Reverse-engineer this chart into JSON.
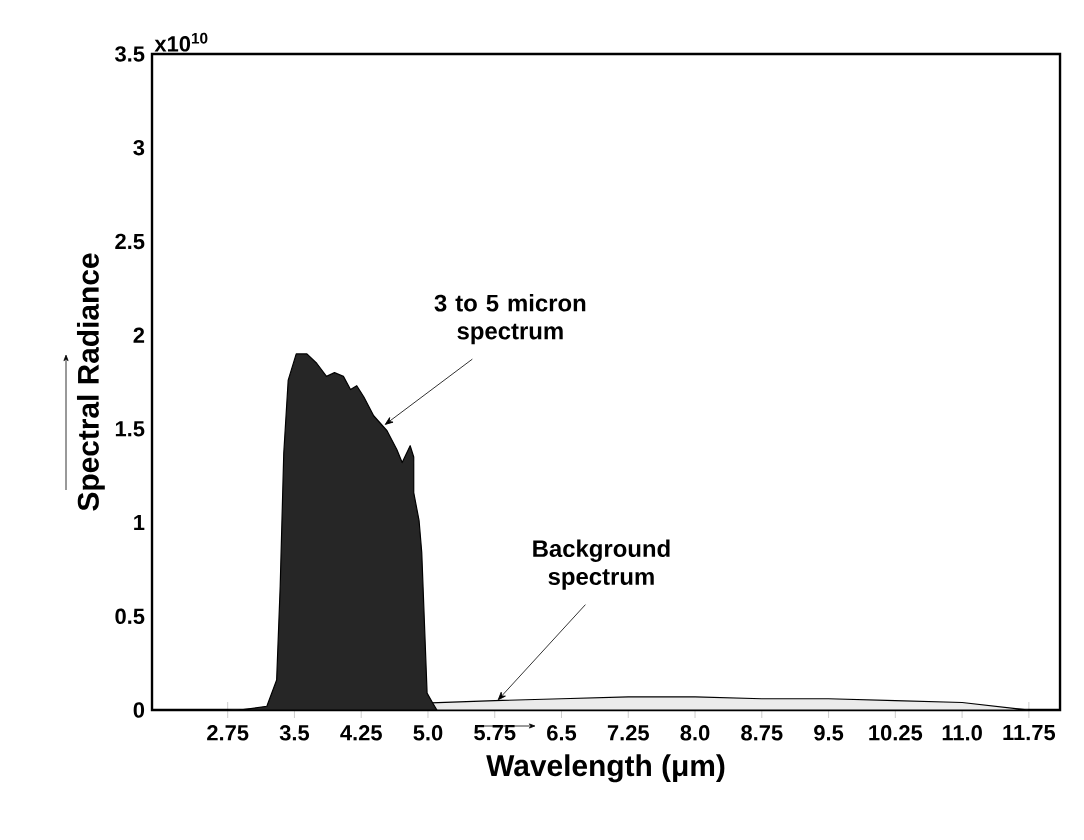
{
  "chart_data": {
    "type": "area",
    "xlabel": "Wavelength (μm)",
    "ylabel": "Spectral Radiance",
    "xlim": [
      1.9,
      12.1
    ],
    "ylim": [
      0,
      3.5
    ],
    "xticks": [
      2.75,
      3.5,
      4.25,
      {
        "value": 5.0,
        "label": "5.0"
      },
      5.75,
      6.5,
      7.25,
      {
        "value": 8.0,
        "label": "8.0"
      },
      8.75,
      9.5,
      10.25,
      {
        "value": 11.0,
        "label": "11.0"
      },
      11.75
    ],
    "yticks": [
      0,
      0.5,
      1,
      1.5,
      2,
      2.5,
      3,
      3.5
    ],
    "series": [
      {
        "color": "#ebebeb",
        "x": [
          2.75,
          3.5,
          4.25,
          5.0,
          5.75,
          6.5,
          7.25,
          8.0,
          8.75,
          9.5,
          10.25,
          11.0,
          11.75
        ],
        "values": [
          0,
          null,
          null,
          null,
          0.05,
          0.06,
          0.07,
          0.07,
          0.06,
          0.06,
          0.05,
          0.04,
          0
        ]
      },
      {
        "color": "#262626",
        "x": [
          2.89,
          3.19,
          3.3,
          3.34,
          3.38,
          3.43,
          3.52,
          3.64,
          3.75,
          3.86,
          3.95,
          4.05,
          4.13,
          4.2,
          4.28,
          4.39,
          4.54,
          4.65,
          4.71,
          4.8,
          4.84,
          4.84,
          4.9,
          4.93,
          4.99,
          5.05,
          5.1
        ],
        "values": [
          0,
          0.02,
          0.16,
          0.66,
          1.37,
          1.76,
          1.9,
          1.9,
          1.85,
          1.78,
          1.8,
          1.78,
          1.71,
          1.73,
          1.67,
          1.57,
          1.49,
          1.39,
          1.32,
          1.41,
          1.35,
          1.16,
          1.01,
          0.84,
          0.09,
          0.04,
          0
        ]
      }
    ],
    "annotations": [
      "x10$^{10}$",
      {
        "text": "3 to 5 micron spectrum",
        "x": 4.51,
        "y": 1.52
      },
      {
        "text": "Background spectrum",
        "x": 5.78,
        "y": 0.05
      }
    ]
  }
}
